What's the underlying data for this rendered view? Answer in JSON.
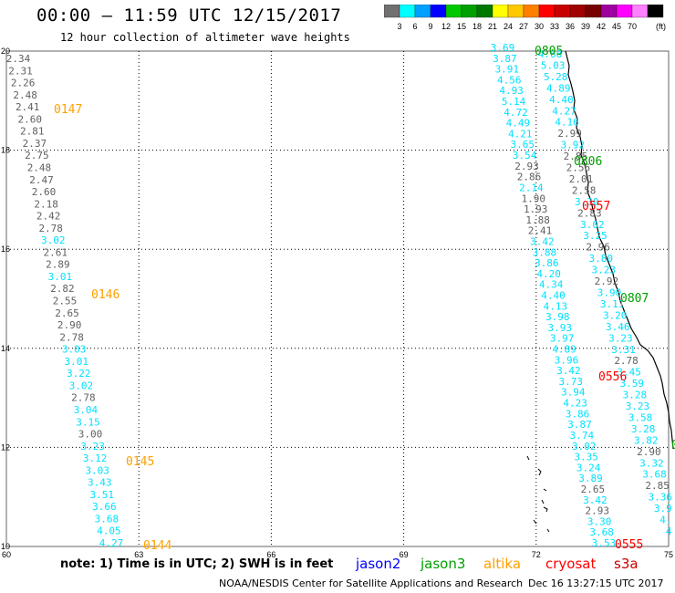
{
  "header": {
    "title": "00:00 – 11:59 UTC 12/15/2017",
    "subtitle": "12 hour collection of altimeter wave heights"
  },
  "colorbar": {
    "colors": [
      "#707070",
      "#00ffff",
      "#00a0ff",
      "#0000ff",
      "#00c800",
      "#00a000",
      "#007800",
      "#ffff00",
      "#ffc800",
      "#ff8000",
      "#ff0000",
      "#c80000",
      "#a00000",
      "#780000",
      "#a000a0",
      "#ff00ff",
      "#ff80ff",
      "#000000"
    ],
    "labels": [
      "3",
      "6",
      "9",
      "12",
      "15",
      "18",
      "21",
      "24",
      "27",
      "30",
      "33",
      "36",
      "39",
      "42",
      "45",
      "70"
    ],
    "unit": "(ft)"
  },
  "map": {
    "lon_ticks": [
      60,
      63,
      66,
      69,
      72,
      75
    ],
    "lat_ticks": [
      10,
      12,
      14,
      16,
      18,
      20
    ],
    "x_tick_labels": [
      "60",
      "63",
      "66",
      "69",
      "72",
      "75"
    ],
    "y_tick_labels": [
      "10",
      "12",
      "14",
      "16",
      "18",
      "20"
    ]
  },
  "colors": {
    "gray": "#606060",
    "cyan": "#00e0ff",
    "jason2": "#0000ff",
    "jason3": "#00a000",
    "altika": "#ffa000",
    "cryosat": "#ff0000",
    "s3a": "#c80000",
    "coast": "#000000"
  },
  "tracks": {
    "track1": {
      "values": [
        "2.34",
        "2.31",
        "2.26",
        "2.48",
        "2.41",
        "2.60",
        "2.81",
        "2.37",
        "2.75",
        "2.48",
        "2.47",
        "2.60",
        "2.18",
        "2.42",
        "2.78",
        "3.02",
        "2.61",
        "2.89",
        "3.01",
        "2.82",
        "2.55",
        "2.65",
        "2.90",
        "2.78",
        "3.03",
        "3.01",
        "3.22",
        "3.02",
        "2.78",
        "3.04",
        "3.15",
        "3.00",
        "3.23",
        "3.12",
        "3.03",
        "3.43",
        "3.51",
        "3.66",
        "3.68",
        "4.05",
        "4.27"
      ],
      "colors": [
        "gray",
        "gray",
        "gray",
        "gray",
        "gray",
        "gray",
        "gray",
        "gray",
        "gray",
        "gray",
        "gray",
        "gray",
        "gray",
        "gray",
        "gray",
        "cyan",
        "gray",
        "gray",
        "cyan",
        "gray",
        "gray",
        "gray",
        "gray",
        "gray",
        "cyan",
        "cyan",
        "cyan",
        "cyan",
        "gray",
        "cyan",
        "cyan",
        "gray",
        "cyan",
        "cyan",
        "cyan",
        "cyan",
        "cyan",
        "cyan",
        "cyan",
        "cyan",
        "cyan"
      ]
    },
    "track2": {
      "values": [
        "3.69",
        "3.87",
        "3.91",
        "4.56",
        "4.93",
        "5.14",
        "4.72",
        "4.49",
        "4.21",
        "3.65",
        "3.54",
        "2.93",
        "2.86",
        "2.14",
        "1.90",
        "1.93",
        "1.88",
        "2.41",
        "3.42",
        "3.88",
        "3.86",
        "4.20",
        "4.34",
        "4.40",
        "4.13",
        "3.98",
        "3.93",
        "3.97",
        "4.89",
        "3.96",
        "3.42",
        "3.73",
        "3.94",
        "4.23",
        "3.86",
        "3.87",
        "3.74",
        "3.02",
        "3.35",
        "3.24",
        "3.89",
        "2.65",
        "3.42",
        "2.93",
        "3.30",
        "3.68",
        "3.53"
      ],
      "colors": [
        "cyan",
        "cyan",
        "cyan",
        "cyan",
        "cyan",
        "cyan",
        "cyan",
        "cyan",
        "cyan",
        "cyan",
        "cyan",
        "gray",
        "gray",
        "cyan",
        "gray",
        "gray",
        "gray",
        "gray",
        "cyan",
        "cyan",
        "cyan",
        "cyan",
        "cyan",
        "cyan",
        "cyan",
        "cyan",
        "cyan",
        "cyan",
        "cyan",
        "cyan",
        "cyan",
        "cyan",
        "cyan",
        "cyan",
        "cyan",
        "cyan",
        "cyan",
        "cyan",
        "cyan",
        "cyan",
        "cyan",
        "gray",
        "cyan",
        "gray",
        "cyan",
        "cyan",
        "cyan"
      ]
    },
    "track3": {
      "values": [
        "4.68",
        "5.03",
        "5.28",
        "4.89",
        "4.40",
        "4.27",
        "4.16",
        "2.99",
        "3.92",
        "2.85",
        "2.56",
        "2.01",
        "2.58",
        "3.30",
        "2.83",
        "3.02",
        "3.25",
        "2.96",
        "3.80",
        "3.23",
        "2.92",
        "3.90",
        "3.11",
        "3.20",
        "3.46",
        "3.23",
        "3.31",
        "2.78",
        "3.45",
        "3.59",
        "3.28",
        "3.23",
        "3.58",
        "3.28",
        "3.82",
        "2.90",
        "3.32",
        "3.68",
        "2.85",
        "3.36",
        "3.9",
        "4.",
        "4"
      ],
      "colors": [
        "cyan",
        "cyan",
        "cyan",
        "cyan",
        "cyan",
        "cyan",
        "cyan",
        "gray",
        "cyan",
        "gray",
        "gray",
        "gray",
        "gray",
        "cyan",
        "gray",
        "cyan",
        "cyan",
        "gray",
        "cyan",
        "cyan",
        "gray",
        "cyan",
        "cyan",
        "cyan",
        "cyan",
        "cyan",
        "cyan",
        "gray",
        "cyan",
        "cyan",
        "cyan",
        "cyan",
        "cyan",
        "cyan",
        "cyan",
        "gray",
        "cyan",
        "cyan",
        "gray",
        "cyan",
        "cyan",
        "cyan",
        "cyan"
      ]
    }
  },
  "time_labels": [
    {
      "text": "0147",
      "color": "altika"
    },
    {
      "text": "0146",
      "color": "altika"
    },
    {
      "text": "0145",
      "color": "altika"
    },
    {
      "text": "0144",
      "color": "altika"
    },
    {
      "text": "0805",
      "color": "jason3"
    },
    {
      "text": "0806",
      "color": "jason3"
    },
    {
      "text": "0807",
      "color": "jason3"
    },
    {
      "text": "0",
      "color": "jason3"
    },
    {
      "text": "0557",
      "color": "cryosat"
    },
    {
      "text": "0556",
      "color": "cryosat"
    },
    {
      "text": "0555",
      "color": "cryosat"
    }
  ],
  "note": "note: 1) Time is in UTC; 2) SWH is in feet",
  "legend": [
    {
      "label": "jason2",
      "color": "jason2"
    },
    {
      "label": "jason3",
      "color": "jason3"
    },
    {
      "label": "altika",
      "color": "altika"
    },
    {
      "label": "cryosat",
      "color": "cryosat"
    },
    {
      "label": "s3a",
      "color": "s3a"
    }
  ],
  "footer": {
    "credit": "NOAA/NESDIS Center for Satellite Applications and Research",
    "timestamp": "Dec 16 13:27:15 UTC 2017"
  }
}
